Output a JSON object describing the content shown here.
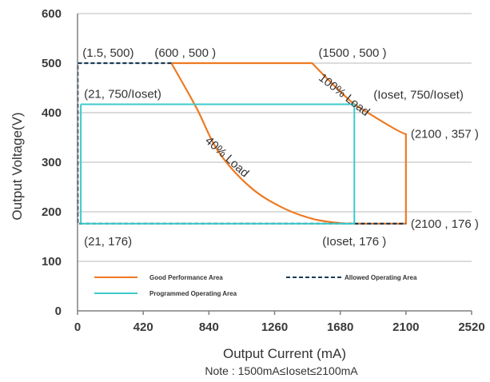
{
  "chart_data": {
    "type": "line",
    "xlabel": "Output Current (mA)",
    "ylabel": "Output Voltage(V)",
    "note": "Note :  1500mA≤Ioset≤2100mA",
    "xlim": [
      0,
      2520
    ],
    "ylim": [
      0,
      600
    ],
    "x_ticks": [
      0,
      420,
      840,
      1260,
      1680,
      2100,
      2520
    ],
    "y_ticks": [
      0,
      100,
      200,
      300,
      400,
      500,
      600
    ],
    "grid": "horizontal",
    "colors": {
      "good": "#ee7a22",
      "allowed": "#1b3a55",
      "programmed": "#3ec9cc",
      "grid": "#c8c8c8",
      "axis": "#808080"
    },
    "series": [
      {
        "name": "Good Performance Area",
        "style": "solid",
        "color": "#ee7a22",
        "x": [
          600,
          1500,
          1770,
          2100,
          2100,
          1770,
          1680,
          1500,
          1300,
          1100,
          900,
          760,
          600
        ],
        "y": [
          500,
          500,
          417,
          357,
          176,
          176,
          177,
          186,
          210,
          251,
          322,
          410,
          500
        ]
      },
      {
        "name": "Allowed Operating Area",
        "style": "dashed",
        "color": "#1b3a55",
        "x": [
          600,
          1.5,
          1.5,
          2100
        ],
        "y": [
          500,
          500,
          176,
          176
        ]
      },
      {
        "name": "Programmed Operating Area",
        "style": "solid",
        "color": "#3ec9cc",
        "x": [
          21,
          1770,
          1770,
          21,
          21
        ],
        "y": [
          417,
          417,
          176,
          176,
          417
        ]
      }
    ],
    "annotations": [
      {
        "text": "(1.5, 500)",
        "x": 1.5,
        "y": 500
      },
      {
        "text": "(600 , 500 )",
        "x": 600,
        "y": 500
      },
      {
        "text": "(1500 , 500 )",
        "x": 1500,
        "y": 500
      },
      {
        "text": "(21, 750/Ioset)",
        "x": 21,
        "y": 417
      },
      {
        "text": "(Ioset, 750/Ioset)",
        "x": 1770,
        "y": 417
      },
      {
        "text": "(2100 , 357 )",
        "x": 2100,
        "y": 357
      },
      {
        "text": "(2100 , 176 )",
        "x": 2100,
        "y": 176
      },
      {
        "text": "(21, 176)",
        "x": 21,
        "y": 176
      },
      {
        "text": "(Ioset, 176 )",
        "x": 1770,
        "y": 176
      },
      {
        "text": "100% Load",
        "x": 1690,
        "y": 430
      },
      {
        "text": "40% Load",
        "x": 940,
        "y": 305
      }
    ]
  }
}
